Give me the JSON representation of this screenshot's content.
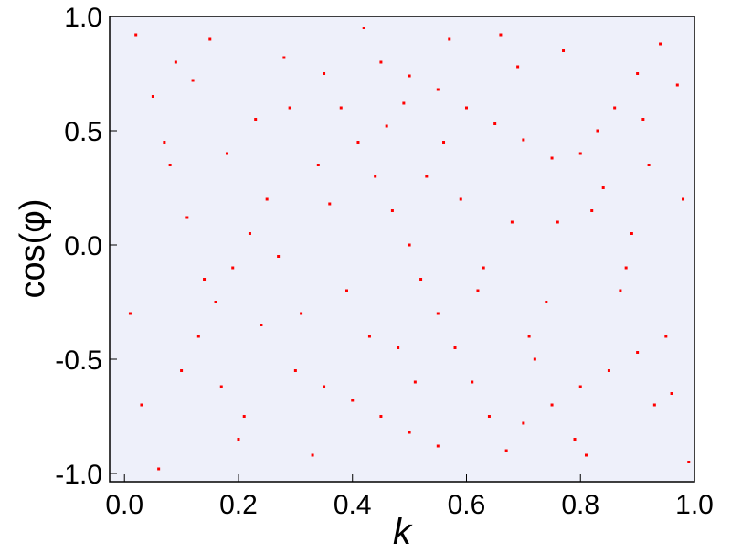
{
  "chart_data": {
    "type": "scatter",
    "x_label": "k",
    "y_label": "cos(φ)",
    "xlim": [
      -0.026,
      1.0
    ],
    "ylim": [
      -1.036,
      1.0
    ],
    "xticks": [
      {
        "value": 0,
        "label": "0.0"
      },
      0.2,
      0.4,
      0.6,
      0.8,
      {
        "value": 1,
        "label": "1.0"
      }
    ],
    "yticks": [
      {
        "value": -1,
        "label": "-1.0"
      },
      -0.5,
      {
        "value": 0,
        "label": "0.0"
      },
      0.5,
      {
        "value": 1,
        "label": "1.0"
      }
    ],
    "series": [
      {
        "color": "#ff0000",
        "x": [
          0.35,
          0.38,
          0.41,
          0.44,
          0.47,
          0.5,
          0.52,
          0.55,
          0.58,
          0.61,
          0.64,
          0.67,
          0.45,
          0.5,
          0.55,
          0.6,
          0.65,
          0.7,
          0.75,
          0.8,
          0.83,
          0.86,
          0.9,
          0.94,
          0.25,
          0.22,
          0.19,
          0.16,
          0.13,
          0.1,
          0.3,
          0.35,
          0.4,
          0.45,
          0.5,
          0.55,
          0.7,
          0.75,
          0.8,
          0.85,
          0.9,
          0.95,
          0.02,
          0.05,
          0.08,
          0.11,
          0.14,
          0.17,
          0.2,
          0.23,
          0.28,
          0.31,
          0.36,
          0.42,
          0.48,
          0.53,
          0.57,
          0.62,
          0.68,
          0.72,
          0.77,
          0.82,
          0.88,
          0.92,
          0.97,
          0.99,
          0.03,
          0.07,
          0.12,
          0.18,
          0.24,
          0.29,
          0.33,
          0.39,
          0.46,
          0.51,
          0.59,
          0.63,
          0.69,
          0.74,
          0.79,
          0.84,
          0.89,
          0.93,
          0.98,
          0.01,
          0.06,
          0.09,
          0.15,
          0.21,
          0.27,
          0.34,
          0.43,
          0.49,
          0.56,
          0.66,
          0.71,
          0.76,
          0.81,
          0.87,
          0.91,
          0.96
        ],
        "y": [
          0.75,
          0.6,
          0.45,
          0.3,
          0.15,
          0.0,
          -0.15,
          -0.3,
          -0.45,
          -0.6,
          -0.75,
          -0.9,
          0.8,
          0.74,
          0.68,
          0.6,
          0.53,
          0.46,
          0.38,
          0.4,
          0.5,
          0.6,
          0.75,
          0.88,
          0.2,
          0.05,
          -0.1,
          -0.25,
          -0.4,
          -0.55,
          -0.55,
          -0.62,
          -0.68,
          -0.75,
          -0.82,
          -0.88,
          -0.78,
          -0.7,
          -0.62,
          -0.55,
          -0.47,
          -0.4,
          0.92,
          0.65,
          0.35,
          0.12,
          -0.15,
          -0.62,
          -0.85,
          0.55,
          0.82,
          -0.3,
          0.18,
          0.95,
          -0.45,
          0.3,
          0.9,
          -0.2,
          0.1,
          -0.5,
          0.85,
          0.15,
          -0.1,
          0.35,
          0.7,
          -0.95,
          -0.7,
          0.45,
          0.72,
          0.4,
          -0.35,
          0.6,
          -0.92,
          -0.2,
          0.52,
          -0.6,
          0.2,
          -0.1,
          0.78,
          -0.25,
          -0.85,
          0.25,
          0.05,
          -0.7,
          0.2,
          -0.3,
          -0.98,
          0.8,
          0.9,
          -0.75,
          -0.05,
          0.35,
          -0.4,
          0.62,
          0.45,
          0.92,
          -0.4,
          0.1,
          -0.92,
          -0.2,
          0.55,
          -0.65
        ]
      }
    ]
  }
}
